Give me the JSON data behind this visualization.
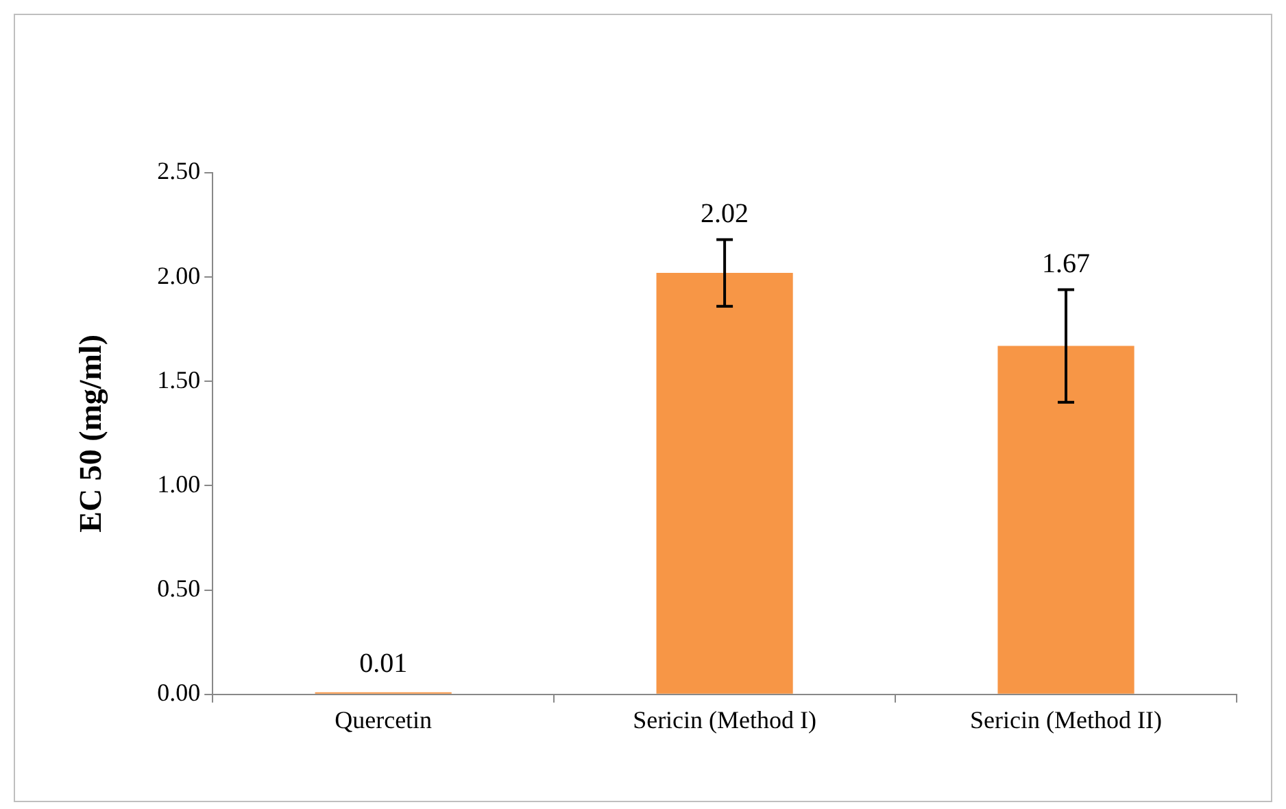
{
  "chart_data": {
    "type": "bar",
    "ylabel": "EC 50 (mg/ml)",
    "categories": [
      "Quercetin",
      "Sericin (Method I)",
      "Sericin (Method II)"
    ],
    "values": [
      0.01,
      2.02,
      1.67
    ],
    "errors": [
      null,
      0.16,
      0.27
    ],
    "color": "#f79646",
    "ylim": [
      0,
      2.5
    ],
    "yticks": [
      {
        "value": 0,
        "label": "0.00"
      },
      {
        "value": 0.5,
        "label": "0.50"
      },
      {
        "value": 1,
        "label": "1.00"
      },
      {
        "value": 1.5,
        "label": "1.50"
      },
      {
        "value": 2,
        "label": "2.00"
      },
      {
        "value": 2.5,
        "label": "2.50"
      }
    ],
    "data_labels": true,
    "grid": false,
    "legend": false
  }
}
